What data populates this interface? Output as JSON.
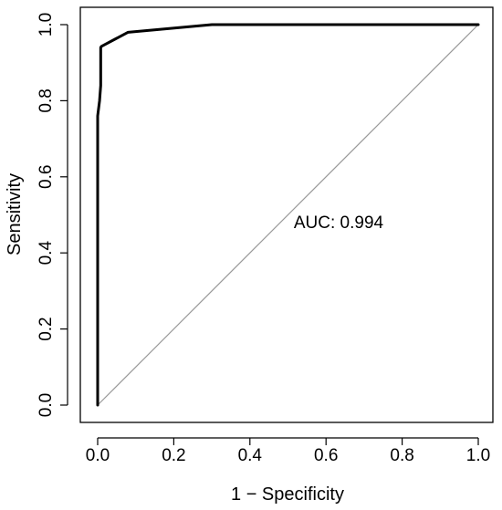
{
  "chart_data": {
    "type": "line",
    "title": "",
    "xlabel": "1 − Specificity",
    "ylabel": "Sensitivity",
    "xlim": [
      0,
      1
    ],
    "ylim": [
      0,
      1
    ],
    "x_ticks": [
      "0.0",
      "0.2",
      "0.4",
      "0.6",
      "0.8",
      "1.0"
    ],
    "y_ticks": [
      "0.0",
      "0.2",
      "0.4",
      "0.6",
      "0.8",
      "1.0"
    ],
    "grid": false,
    "legend": "none",
    "annotation": "AUC: 0.994",
    "series": [
      {
        "x": [
          0.0,
          0.0,
          0.0,
          0.005,
          0.008,
          0.008,
          0.01,
          0.08,
          0.3,
          0.5,
          1.0
        ],
        "y": [
          0.0,
          0.5,
          0.76,
          0.8,
          0.84,
          0.94,
          0.943,
          0.98,
          1.0,
          1.0,
          1.0
        ],
        "color": "#000000"
      },
      {
        "x": [
          0.0,
          1.0
        ],
        "y": [
          0.0,
          1.0
        ],
        "color": "#999999"
      }
    ]
  }
}
